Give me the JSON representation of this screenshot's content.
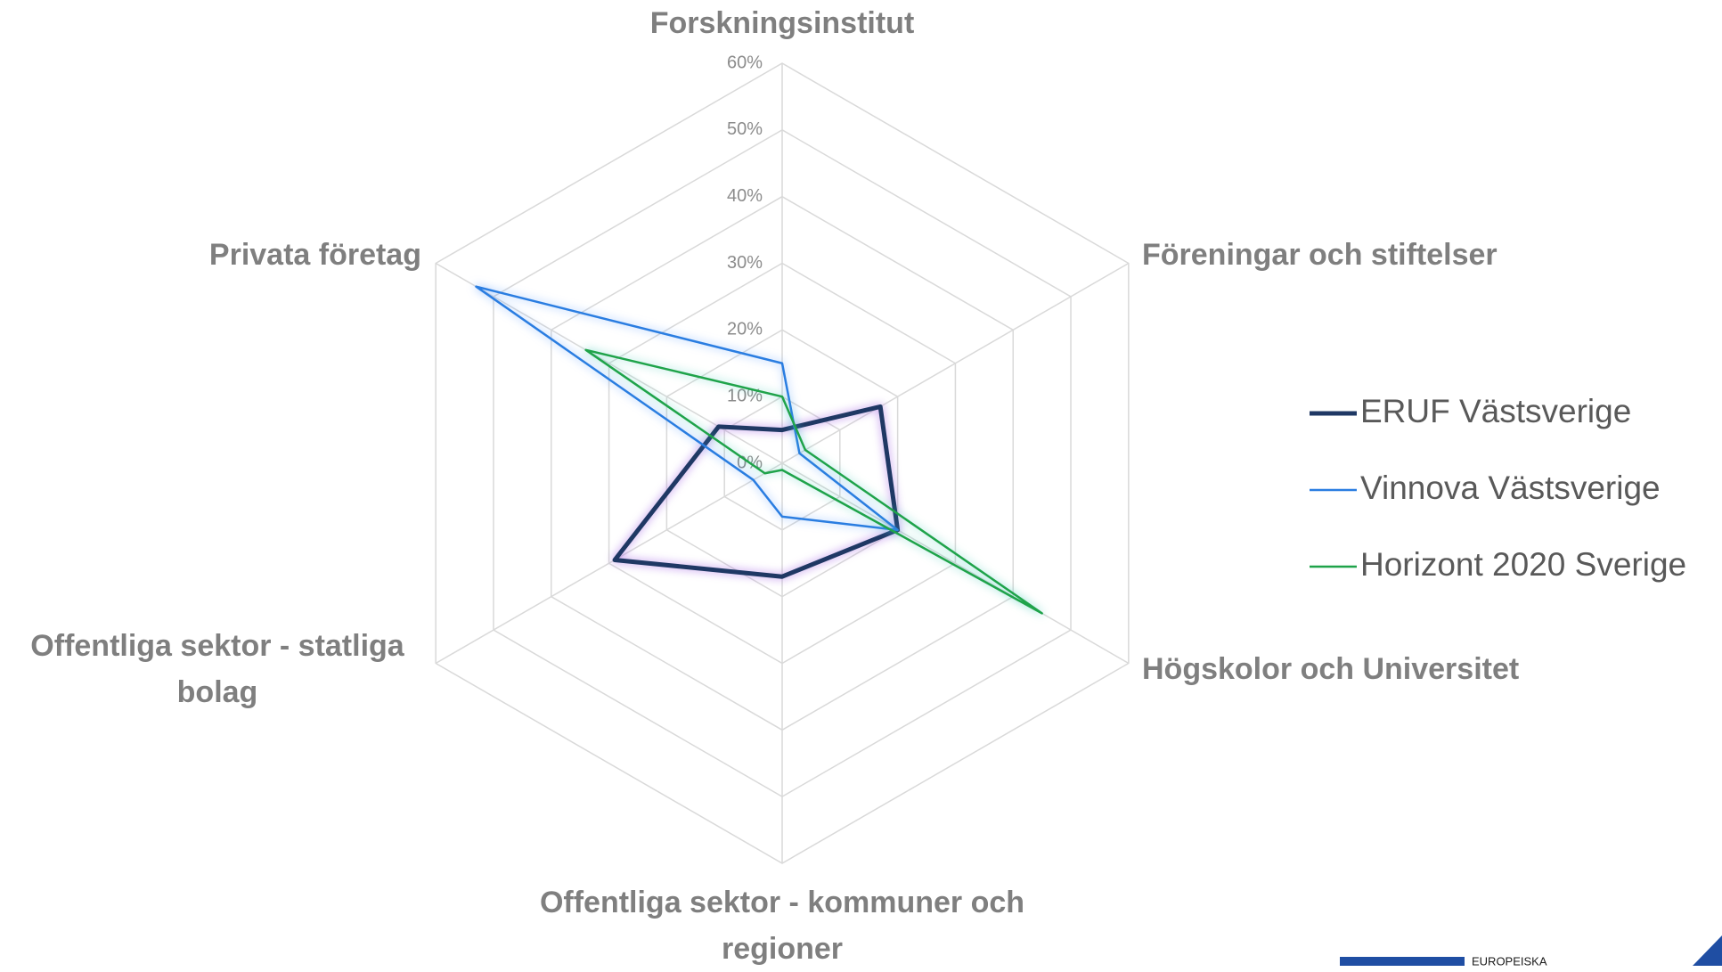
{
  "chart_data": {
    "type": "radar",
    "categories": [
      "Forskningsinstitut",
      "Föreningar och stiftelser",
      "Högskolor och Universitet",
      "Offentliga sektor - kommuner och regioner",
      "Offentliga sektor - statliga bolag",
      "Privata företag"
    ],
    "series": [
      {
        "name": "ERUF Västsverige",
        "color": "#1f3864",
        "values": [
          5,
          17,
          20,
          17,
          29,
          11
        ]
      },
      {
        "name": "Vinnova Västsverige",
        "color": "#2a7de1",
        "values": [
          15,
          3,
          20,
          8,
          5,
          53
        ]
      },
      {
        "name": "Horizont 2020 Sverige",
        "color": "#1fa34a",
        "values": [
          10,
          4,
          45,
          1,
          3,
          34
        ]
      }
    ],
    "ylim": [
      0,
      60
    ],
    "yticks": [
      {
        "value": 0,
        "label": "0%"
      },
      {
        "value": 10,
        "label": "10%"
      },
      {
        "value": 20,
        "label": "20%"
      },
      {
        "value": 30,
        "label": "30%"
      },
      {
        "value": 40,
        "label": "40%"
      },
      {
        "value": 50,
        "label": "50%"
      },
      {
        "value": 60,
        "label": "60%"
      }
    ],
    "grid": true,
    "legend": "right",
    "logo_text": "EUROPEISKA"
  }
}
